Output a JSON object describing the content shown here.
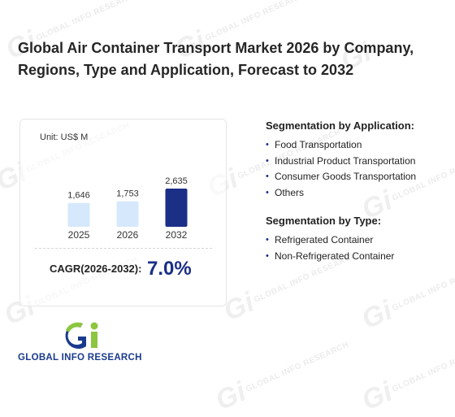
{
  "title": "Global Air Container Transport Market 2026 by Company, Regions, Type and Application, Forecast to 2032",
  "watermark": "GLOBAL INFO RESEARCH",
  "colors": {
    "accent": "#1a2f85",
    "bar_light": "#d6e8fb",
    "bar_dark": "#1a2f85"
  },
  "chart_data": {
    "type": "bar",
    "unit_label": "Unit: US$ M",
    "categories": [
      "2025",
      "2026",
      "2032"
    ],
    "values": [
      1646,
      1753,
      2635
    ],
    "value_labels": [
      "1,646",
      "1,753",
      "2,635"
    ],
    "highlight": [
      false,
      false,
      true
    ],
    "ylim": [
      0,
      2635
    ],
    "grid": false
  },
  "cagr": {
    "label": "CAGR(2026-2032):",
    "value": "7.0%"
  },
  "segmentation_application": {
    "heading": "Segmentation by Application:",
    "items": [
      "Food Transportation",
      "Industrial Product Transportation",
      "Consumer Goods Transportation",
      "Others"
    ]
  },
  "segmentation_type": {
    "heading": "Segmentation by Type:",
    "items": [
      "Refrigerated Container",
      "Non-Refrigerated Container"
    ]
  },
  "logo": {
    "icon": "gir-logo-icon",
    "text": "GLOBAL INFO RESEARCH"
  }
}
